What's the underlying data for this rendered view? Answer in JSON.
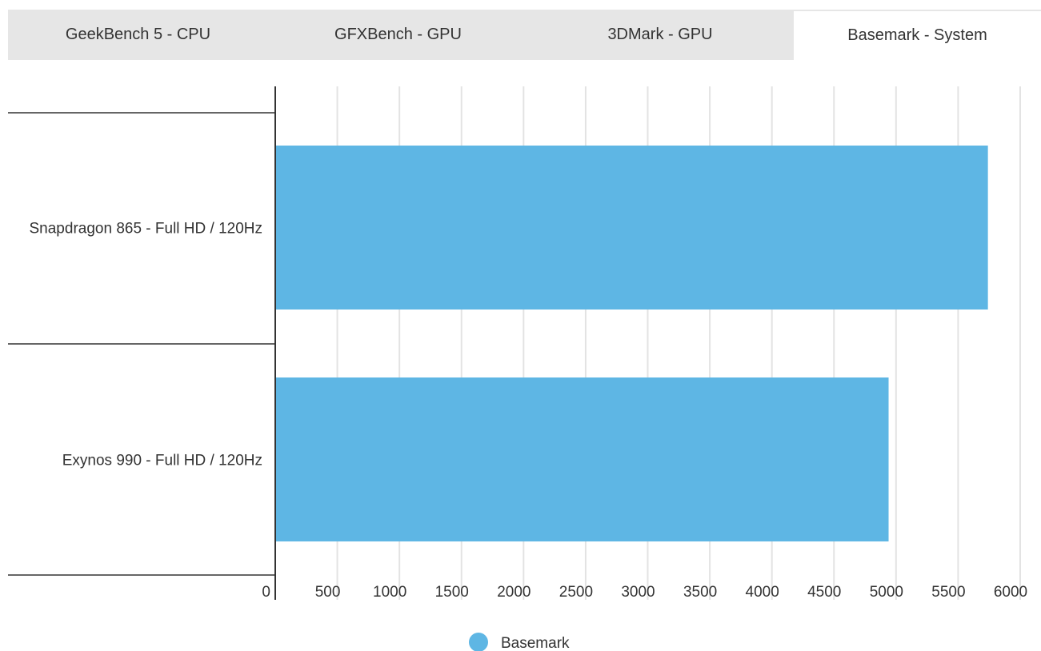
{
  "tabs": [
    {
      "label": "GeekBench 5 - CPU",
      "active": false
    },
    {
      "label": "GFXBench - GPU",
      "active": false
    },
    {
      "label": "3DMark - GPU",
      "active": false
    },
    {
      "label": "Basemark - System",
      "active": true
    }
  ],
  "chart_data": {
    "type": "bar",
    "orientation": "horizontal",
    "categories": [
      "Snapdragon 865 - Full HD / 120Hz",
      "Exynos 990 - Full HD / 120Hz"
    ],
    "series": [
      {
        "name": "Basemark",
        "values": [
          5740,
          4940
        ],
        "color": "#5eb6e4"
      }
    ],
    "xlim": [
      0,
      6000
    ],
    "xticks": [
      0,
      500,
      1000,
      1500,
      2000,
      2500,
      3000,
      3500,
      4000,
      4500,
      5000,
      5500,
      6000
    ],
    "grid": true,
    "legend": "bottom-center",
    "colors": {
      "bar": "#5eb6e4",
      "grid": "#e3e3e3",
      "axis": "#333333",
      "tab_inactive_bg": "#e6e6e6",
      "tab_active_bg": "#ffffff"
    }
  }
}
